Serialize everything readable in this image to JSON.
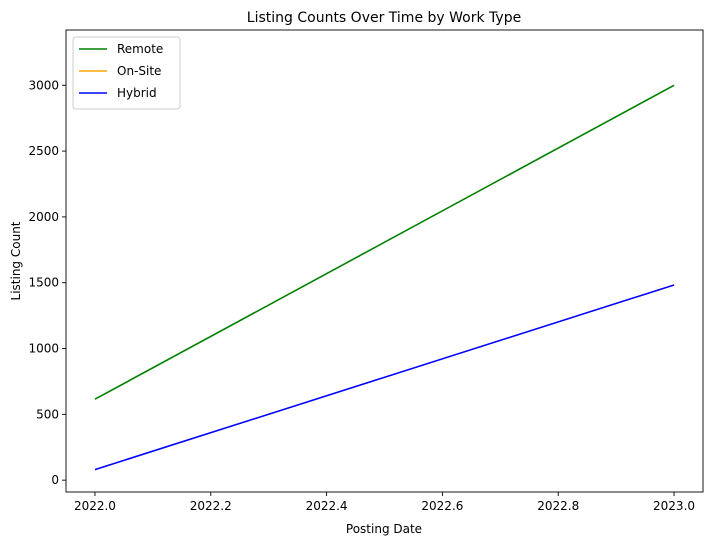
{
  "chart_data": {
    "type": "line",
    "title": "Listing Counts Over Time by Work Type",
    "xlabel": "Posting Date",
    "ylabel": "Listing Count",
    "xlim": [
      1971.95,
      2023.05
    ],
    "ylim": [
      -90,
      3420
    ],
    "xticks": [
      2022.0,
      2022.2,
      2022.4,
      2022.6,
      2022.8,
      2023.0
    ],
    "xtick_labels": [
      "2022.0",
      "2022.2",
      "2022.4",
      "2022.6",
      "2022.8",
      "2023.0"
    ],
    "yticks": [
      0,
      500,
      1000,
      1500,
      2000,
      2500,
      3000
    ],
    "ytick_labels": [
      "0",
      "500",
      "1000",
      "1500",
      "2000",
      "2500",
      "3000"
    ],
    "grid": false,
    "legend_position": "top-left",
    "series": [
      {
        "name": "Remote",
        "color": "#008000",
        "x": [
          2022.0,
          2023.0
        ],
        "y": [
          615,
          3000
        ]
      },
      {
        "name": "On-Site",
        "color": "#ffa500",
        "x": [],
        "y": []
      },
      {
        "name": "Hybrid",
        "color": "#0000ff",
        "x": [
          2022.0,
          2023.0
        ],
        "y": [
          80,
          1483
        ]
      }
    ]
  }
}
